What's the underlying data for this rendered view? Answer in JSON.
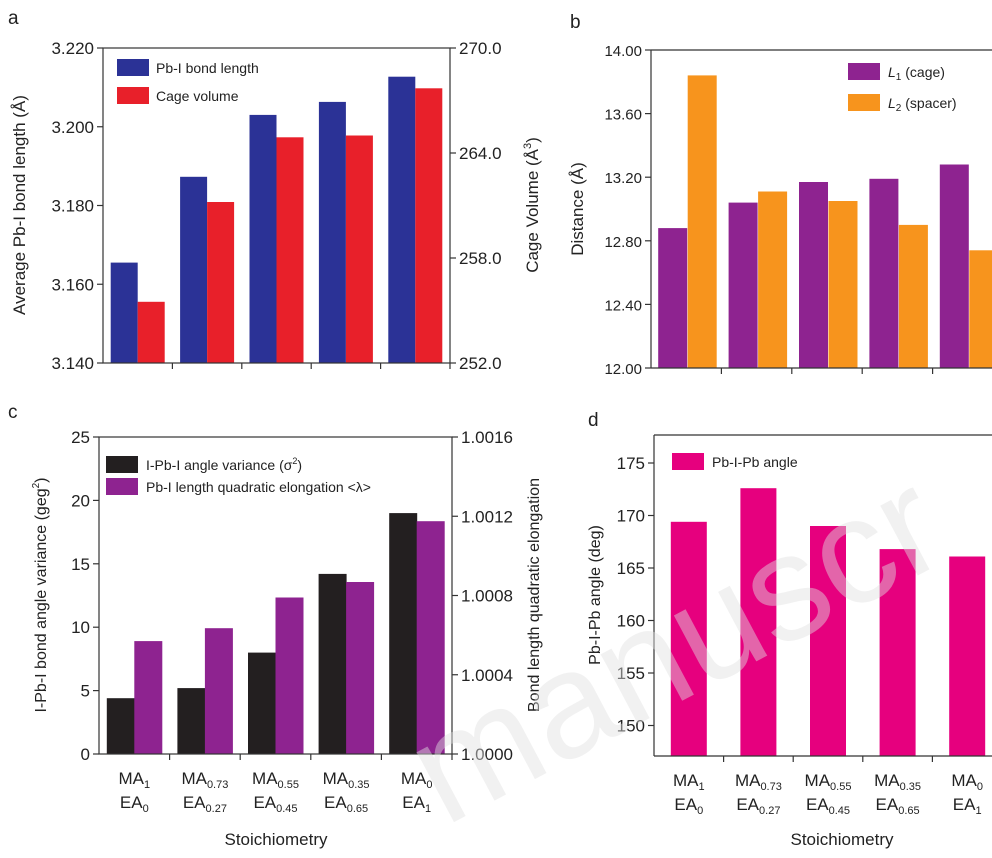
{
  "panels": [
    {
      "letter": "a"
    },
    {
      "letter": "b"
    },
    {
      "letter": "c"
    },
    {
      "letter": "d"
    }
  ],
  "stoichiometry_labels": [
    {
      "top_base": "MA",
      "top_sub": "1",
      "bot_base": "EA",
      "bot_sub": "0"
    },
    {
      "top_base": "MA",
      "top_sub": "0.73",
      "bot_base": "EA",
      "bot_sub": "0.27"
    },
    {
      "top_base": "MA",
      "top_sub": "0.55",
      "bot_base": "EA",
      "bot_sub": "0.45"
    },
    {
      "top_base": "MA",
      "top_sub": "0.35",
      "bot_base": "EA",
      "bot_sub": "0.65"
    },
    {
      "top_base": "MA",
      "top_sub": "0",
      "bot_base": "EA",
      "bot_sub": "1"
    }
  ],
  "colors": {
    "blue": "#2B3296",
    "red": "#E8202A",
    "purple": "#8E2390",
    "orange": "#F7941D",
    "black": "#231F20",
    "magenta": "#E6007E"
  },
  "chart_data": [
    {
      "panel": "a",
      "type": "bar",
      "categories": [
        "MA1 EA0",
        "MA0.73 EA0.27",
        "MA0.55 EA0.45",
        "MA0.35 EA0.65",
        "MA0 EA1"
      ],
      "ylabel": "Average Pb-I bond length (Å)",
      "y2label_main": "Cage Volume (Å",
      "y2label_sup": "3",
      "y2label_end": ")",
      "ylim": [
        3.14,
        3.22
      ],
      "yticks": [
        "3.140",
        "3.160",
        "3.180",
        "3.200",
        "3.220"
      ],
      "y2lim": [
        252.0,
        270.0
      ],
      "y2ticks": [
        "252.0",
        "258.0",
        "264.0",
        "270.0"
      ],
      "legend_position": "top-left",
      "series": [
        {
          "name": "Pb-I bond length",
          "axis": "left",
          "color": "#2B3296",
          "values": [
            3.1655,
            3.1873,
            3.203,
            3.2063,
            3.2127
          ]
        },
        {
          "name": "Cage volume",
          "axis": "right",
          "color": "#E8202A",
          "values": [
            255.5,
            261.2,
            264.9,
            265.0,
            267.7
          ]
        }
      ]
    },
    {
      "panel": "b",
      "type": "bar",
      "categories": [
        "MA1 EA0",
        "MA0.73 EA0.27",
        "MA0.55 EA0.45",
        "MA0.35 EA0.65",
        "MA0 EA1"
      ],
      "ylabel": "Distance (Å)",
      "ylim": [
        12.0,
        14.0
      ],
      "yticks": [
        "12.00",
        "12.40",
        "12.80",
        "13.20",
        "13.60",
        "14.00"
      ],
      "legend_position": "top-right",
      "series": [
        {
          "name_main": "L",
          "name_sub": "1",
          "name_rest": " (cage)",
          "color": "#8E2390",
          "values": [
            12.88,
            13.04,
            13.17,
            13.19,
            13.28
          ]
        },
        {
          "name_main": "L",
          "name_sub": "2",
          "name_rest": " (spacer)",
          "color": "#F7941D",
          "values": [
            13.84,
            13.11,
            13.05,
            12.9,
            12.74
          ]
        }
      ]
    },
    {
      "panel": "c",
      "type": "bar",
      "categories": [
        "MA1 EA0",
        "MA0.73 EA0.27",
        "MA0.55 EA0.45",
        "MA0.35 EA0.65",
        "MA0 EA1"
      ],
      "xlabel": "Stoichiometry",
      "ylabel_main": "I-Pb-I bond angle variance (geg",
      "ylabel_sup": "2",
      "ylabel_end": ")",
      "y2label": "Bond length quadratic elongation",
      "ylim": [
        0,
        25
      ],
      "yticks": [
        "0",
        "5",
        "10",
        "15",
        "20",
        "25"
      ],
      "y2lim": [
        1.0,
        1.0016
      ],
      "y2ticks": [
        "1.0000",
        "1.0004",
        "1.0008",
        "1.0012",
        "1.0016"
      ],
      "legend_position": "top-left",
      "series": [
        {
          "name_main": "I-Pb-I angle variance (σ",
          "name_sup": "2",
          "name_rest": ")",
          "axis": "left",
          "color": "#231F20",
          "values": [
            4.4,
            5.2,
            8.0,
            14.2,
            19.0
          ]
        },
        {
          "name": "Pb-I length quadratic elongation <λ>",
          "axis": "right",
          "color": "#8E2390",
          "values": [
            1.00057,
            1.000635,
            1.00079,
            1.000868,
            1.001175
          ]
        }
      ]
    },
    {
      "panel": "d",
      "type": "bar",
      "categories": [
        "MA1 EA0",
        "MA0.73 EA0.27",
        "MA0.55 EA0.45",
        "MA0.35 EA0.65",
        "MA0 EA1"
      ],
      "xlabel": "Stoichiometry",
      "ylabel": "Pb-I-Pb angle (deg)",
      "yticks": [
        "150",
        "155",
        "160",
        "165",
        "170",
        "175"
      ],
      "legend_position": "top-left",
      "series": [
        {
          "name": "Pb-I-Pb angle",
          "color": "#E6007E",
          "values": [
            169.4,
            172.6,
            169.0,
            166.8,
            166.1
          ]
        }
      ]
    }
  ]
}
